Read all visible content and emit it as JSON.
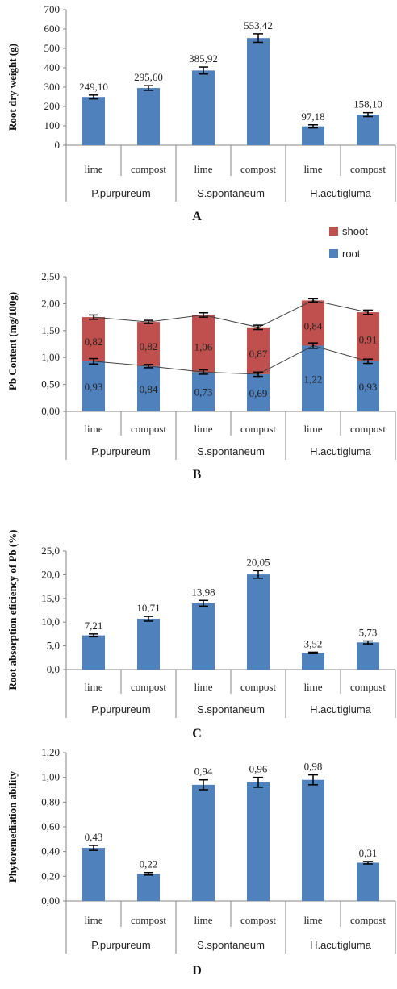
{
  "chart_data": [
    {
      "type": "bar",
      "panel": "A",
      "ylabel": "Root dry weight (g)",
      "ylim": [
        0,
        700
      ],
      "yticks": [
        "0",
        "100",
        "200",
        "300",
        "400",
        "500",
        "600",
        "700"
      ],
      "categories": [
        "lime",
        "compost",
        "lime",
        "compost",
        "lime",
        "compost"
      ],
      "groups": [
        "P.purpureum",
        "S.spontaneum",
        "H.acutigluma"
      ],
      "values": [
        249.1,
        295.6,
        385.92,
        553.42,
        97.18,
        158.1
      ],
      "errors": [
        10,
        12,
        18,
        22,
        8,
        10
      ],
      "labels": [
        "249,10",
        "295,60",
        "385,92",
        "553,42",
        "97,18",
        "158,10"
      ]
    },
    {
      "type": "bar",
      "stacked": true,
      "panel": "B",
      "ylabel": "Pb Content (mg/100g)",
      "ylim": [
        0,
        2.5
      ],
      "yticks": [
        "0,00",
        "0,50",
        "1,00",
        "1,50",
        "2,00",
        "2,50"
      ],
      "categories": [
        "lime",
        "compost",
        "lime",
        "compost",
        "lime",
        "compost"
      ],
      "groups": [
        "P.purpureum",
        "S.spontaneum",
        "H.acutigluma"
      ],
      "legend_position": "top-right",
      "series": [
        {
          "name": "root",
          "values": [
            0.93,
            0.84,
            0.73,
            0.69,
            1.22,
            0.93
          ],
          "errors": [
            0.05,
            0.03,
            0.04,
            0.04,
            0.05,
            0.04
          ],
          "labels": [
            "0,93",
            "0,84",
            "0,73",
            "0,69",
            "1,22",
            "0,93"
          ]
        },
        {
          "name": "shoot",
          "values": [
            0.82,
            0.82,
            1.06,
            0.87,
            0.84,
            0.91
          ],
          "errors": [
            0.04,
            0.03,
            0.04,
            0.04,
            0.03,
            0.04
          ],
          "labels": [
            "0,82",
            "0,82",
            "1,06",
            "0,87",
            "0,84",
            "0,91"
          ]
        }
      ],
      "colors": {
        "root": "#4f81bd",
        "shoot": "#c0504d"
      }
    },
    {
      "type": "bar",
      "panel": "C",
      "ylabel": "Root absorption eficiency of Pb (%)",
      "ylim": [
        0,
        25
      ],
      "yticks": [
        "0,0",
        "5,0",
        "10,0",
        "15,0",
        "20,0",
        "25,0"
      ],
      "categories": [
        "lime",
        "compost",
        "lime",
        "compost",
        "lime",
        "compost"
      ],
      "groups": [
        "P.purpureum",
        "S.spontaneum",
        "H.acutigluma"
      ],
      "values": [
        7.21,
        10.71,
        13.98,
        20.05,
        3.52,
        5.73
      ],
      "errors": [
        0.3,
        0.5,
        0.6,
        0.8,
        0.15,
        0.3
      ],
      "labels": [
        "7,21",
        "10,71",
        "13,98",
        "20,05",
        "3,52",
        "5,73"
      ]
    },
    {
      "type": "bar",
      "panel": "D",
      "ylabel": "Phytoremediation ability",
      "ylim": [
        0,
        1.2
      ],
      "yticks": [
        "0,00",
        "0,20",
        "0,40",
        "0,60",
        "0,80",
        "1,00",
        "1,20"
      ],
      "categories": [
        "lime",
        "compost",
        "lime",
        "compost",
        "lime",
        "compost"
      ],
      "groups": [
        "P.purpureum",
        "S.spontaneum",
        "H.acutigluma"
      ],
      "values": [
        0.43,
        0.22,
        0.94,
        0.96,
        0.98,
        0.31
      ],
      "errors": [
        0.02,
        0.01,
        0.04,
        0.04,
        0.04,
        0.01
      ],
      "labels": [
        "0,43",
        "0,22",
        "0,94",
        "0,96",
        "0,98",
        "0,31"
      ]
    }
  ],
  "colors": {
    "bar": "#4f81bd",
    "axis": "#868686",
    "error": "#000000"
  }
}
